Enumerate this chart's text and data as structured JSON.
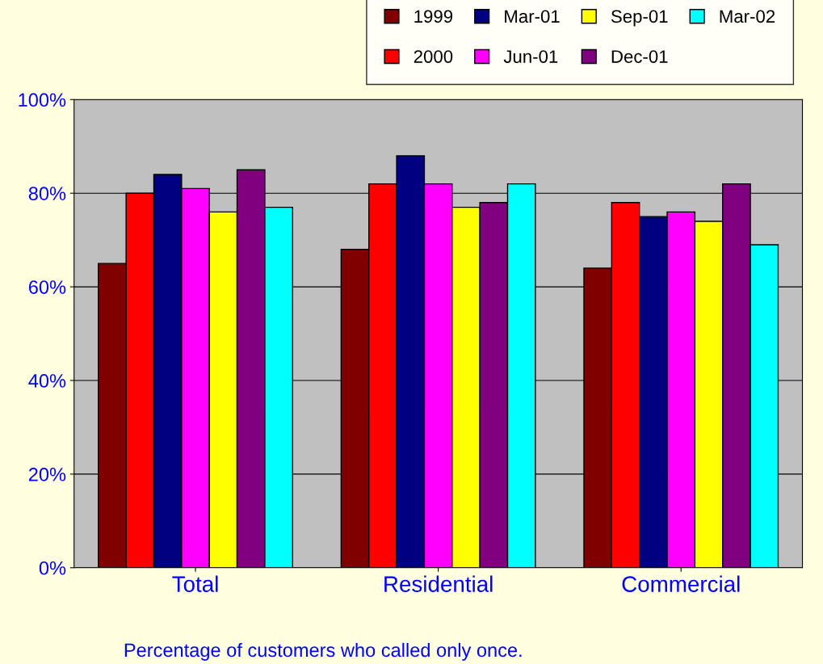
{
  "chart_data": {
    "type": "bar",
    "categories": [
      "Total",
      "Residential",
      "Commercial"
    ],
    "series": [
      {
        "name": "1999",
        "color": "#800000",
        "values": [
          65,
          68,
          64
        ]
      },
      {
        "name": "2000",
        "color": "#ff0000",
        "values": [
          80,
          82,
          78
        ]
      },
      {
        "name": "Mar-01",
        "color": "#000080",
        "values": [
          84,
          88,
          75
        ]
      },
      {
        "name": "Jun-01",
        "color": "#ff00ff",
        "values": [
          81,
          82,
          76
        ]
      },
      {
        "name": "Sep-01",
        "color": "#ffff00",
        "values": [
          76,
          77,
          74
        ]
      },
      {
        "name": "Dec-01",
        "color": "#800080",
        "values": [
          85,
          78,
          82
        ]
      },
      {
        "name": "Mar-02",
        "color": "#00ffff",
        "values": [
          77,
          82,
          69
        ]
      }
    ],
    "ylim": [
      0,
      100
    ],
    "yticks": [
      {
        "value": 0,
        "label": "0%"
      },
      {
        "value": 20,
        "label": "20%"
      },
      {
        "value": 40,
        "label": "40%"
      },
      {
        "value": 60,
        "label": "60%"
      },
      {
        "value": 80,
        "label": "80%"
      },
      {
        "value": 100,
        "label": "100%"
      }
    ],
    "grid": "y",
    "legend": "top right",
    "annotations": [
      "Percentage of customers who called only once."
    ]
  }
}
